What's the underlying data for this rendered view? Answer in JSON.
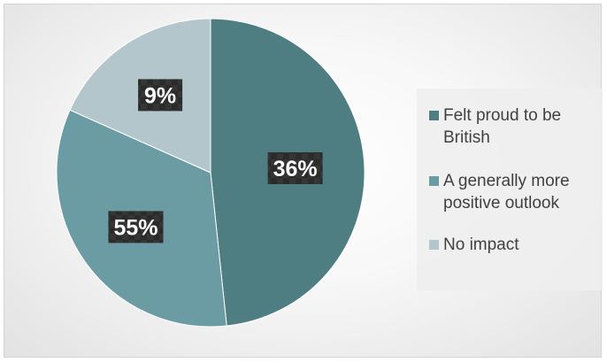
{
  "chart_data": {
    "type": "pie",
    "categories": [
      "Felt proud to be British",
      "A generally more positive outlook",
      "No impact"
    ],
    "values": [
      36,
      55,
      9
    ],
    "labels": [
      "36%",
      "55%",
      "9%"
    ],
    "colors": [
      "#4e7d82",
      "#6b9ba3",
      "#b3c6cb"
    ],
    "legend_position": "right"
  }
}
